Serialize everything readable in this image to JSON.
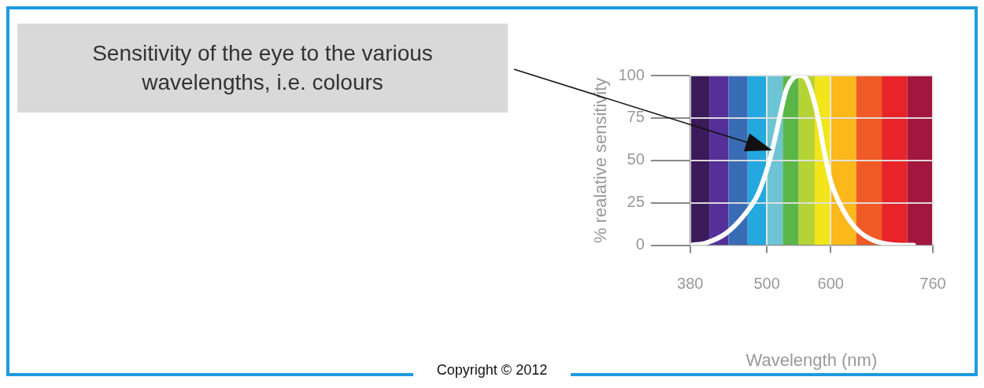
{
  "chart_data": {
    "type": "line",
    "xlabel": "Wavelength (nm)",
    "ylabel": "% realative sensitivity",
    "x": [
      380,
      405,
      436,
      463,
      486,
      502,
      511,
      521,
      530,
      540,
      551,
      562,
      571,
      581,
      590,
      600,
      615,
      637,
      663,
      699,
      730
    ],
    "series": [
      {
        "color": "#ffffff",
        "values": [
          0,
          1.4,
          7,
          17,
          30,
          47,
          60,
          77,
          91,
          98,
          100,
          98,
          89,
          74,
          55,
          38,
          24,
          11,
          3.5,
          0.3,
          0
        ]
      }
    ],
    "xlim": [
      380,
      760
    ],
    "xticks": [
      380,
      500,
      600,
      760
    ],
    "ylim": [
      0,
      100
    ],
    "yticks": [
      0,
      25,
      50,
      75,
      100
    ],
    "bands": [
      {
        "axis": "x",
        "from": 380,
        "to": 410,
        "color": "#3b1a5a"
      },
      {
        "axis": "x",
        "from": 410,
        "to": 440,
        "color": "#553099"
      },
      {
        "axis": "x",
        "from": 440,
        "to": 470,
        "color": "#3a6bb5"
      },
      {
        "axis": "x",
        "from": 470,
        "to": 500,
        "color": "#25a8e0"
      },
      {
        "axis": "x",
        "from": 500,
        "to": 525,
        "color": "#6cc4d4"
      },
      {
        "axis": "x",
        "from": 525,
        "to": 550,
        "color": "#5bb648"
      },
      {
        "axis": "x",
        "from": 550,
        "to": 575,
        "color": "#b6d335"
      },
      {
        "axis": "x",
        "from": 575,
        "to": 600,
        "color": "#f2e51b"
      },
      {
        "axis": "x",
        "from": 600,
        "to": 640,
        "color": "#fbb81b"
      },
      {
        "axis": "x",
        "from": 640,
        "to": 680,
        "color": "#f05a24"
      },
      {
        "axis": "x",
        "from": 680,
        "to": 720,
        "color": "#e8232a"
      },
      {
        "axis": "x",
        "from": 720,
        "to": 760,
        "color": "#a3163d"
      }
    ],
    "annotations": [
      "Sensitivity of the eye to the various wavelengths, i.e. colours",
      "Copyright © 2012"
    ],
    "grid": true,
    "legend": false,
    "marker": "none",
    "line_style": "solid"
  }
}
